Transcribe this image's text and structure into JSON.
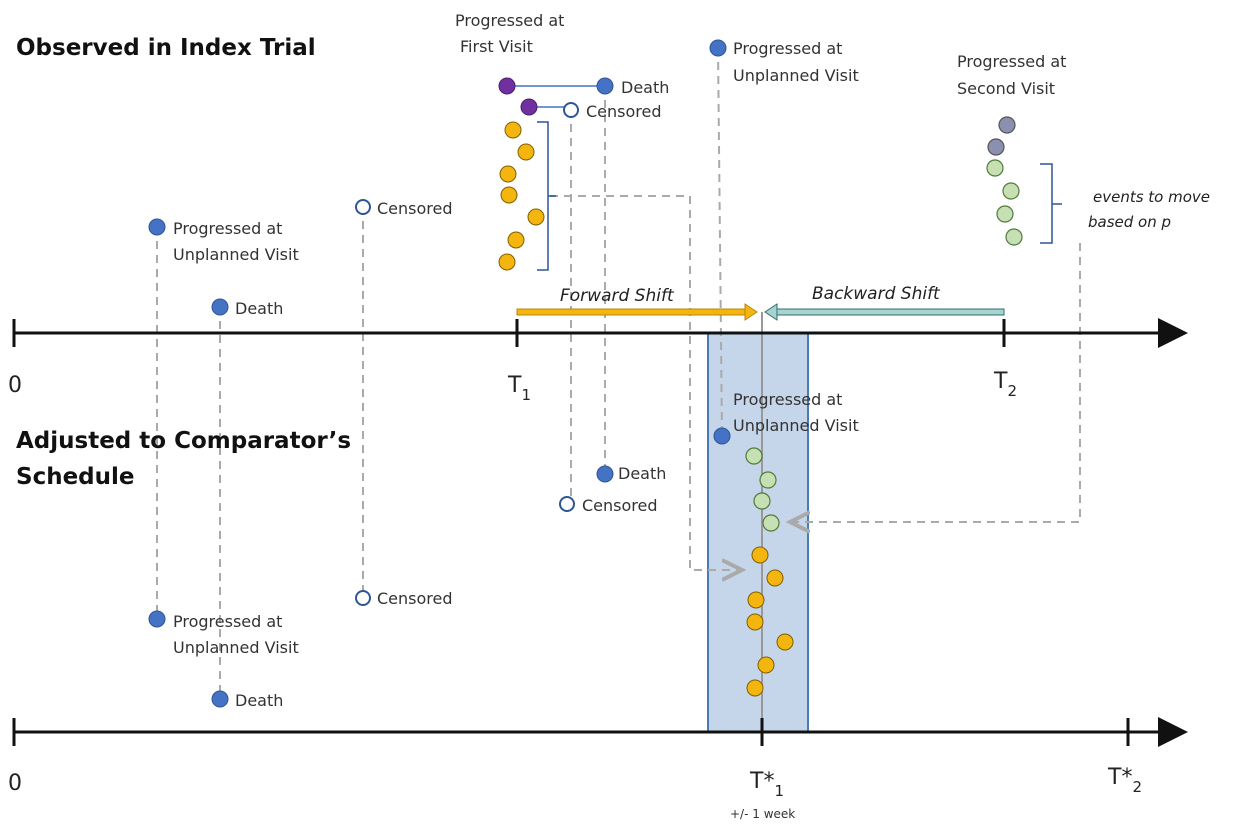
{
  "sections": {
    "observed": "Observed in Index Trial",
    "adjusted": [
      "Adjusted to Comparator’s",
      "Schedule"
    ]
  },
  "top_axis": {
    "origin": "0",
    "t1": {
      "base": "T",
      "sub": "1"
    },
    "t2": {
      "base": "T",
      "sub": "2"
    }
  },
  "bottom_axis": {
    "origin": "0",
    "t1": {
      "base": "T*",
      "sub": "1"
    },
    "t1_note": "+/- 1 week",
    "t2": {
      "base": "T*",
      "sub": "2"
    }
  },
  "shifts": {
    "forward": "Forward Shift",
    "backward": "Backward Shift"
  },
  "note": [
    "events to move",
    "based on p"
  ],
  "labels": [
    [
      "Progressed at",
      "First Visit"
    ],
    [
      "Death"
    ],
    [
      "Censored"
    ],
    [
      "Progressed at",
      "Unplanned Visit"
    ],
    [
      "Progressed at",
      "Second Visit"
    ],
    [
      "Censored"
    ],
    [
      "Progressed at",
      "Unplanned Visit"
    ],
    [
      "Death"
    ],
    [
      "Progressed at",
      "Unplanned Visit"
    ],
    [
      "Death"
    ],
    [
      "Censored"
    ],
    [
      "Censored"
    ],
    [
      "Progressed at",
      "Unplanned Visit"
    ],
    [
      "Death"
    ]
  ]
}
